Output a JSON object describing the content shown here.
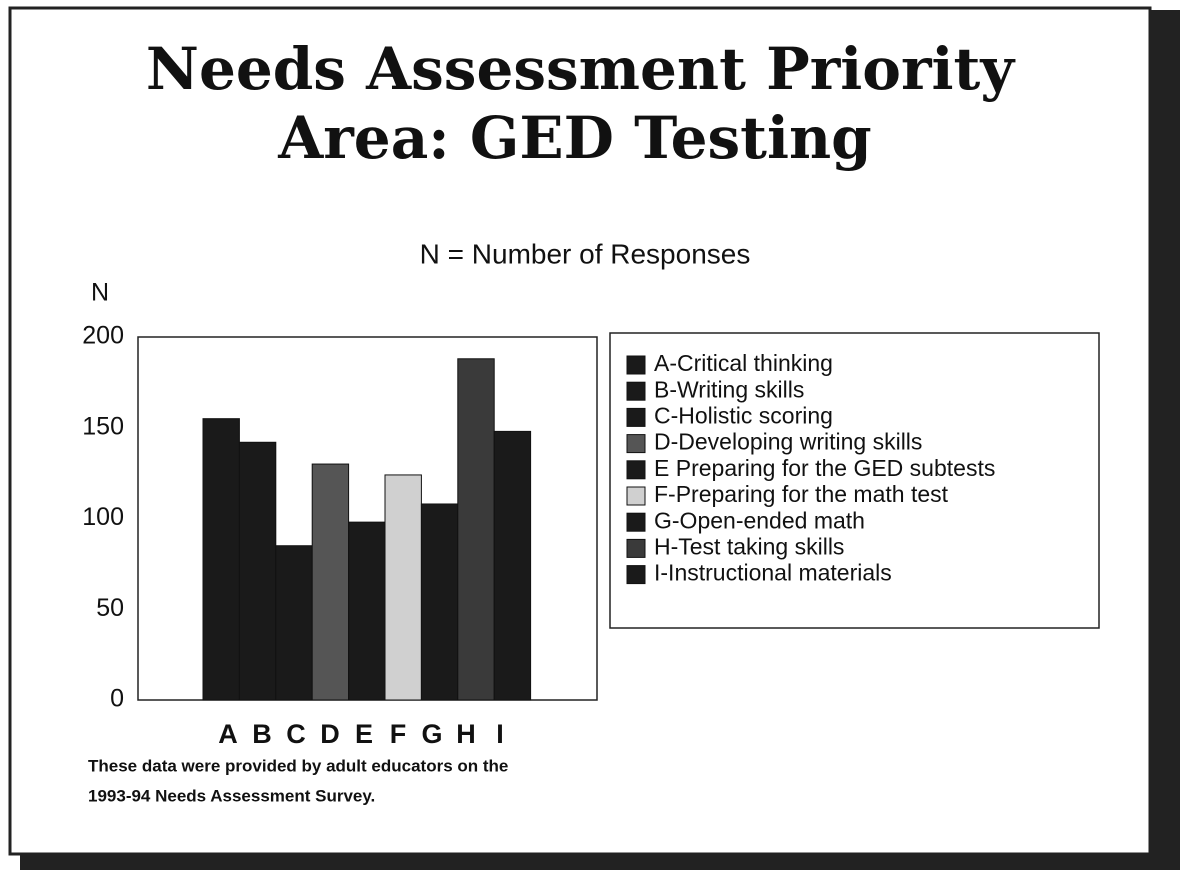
{
  "chart_data": {
    "type": "bar",
    "title": [
      "Needs Assessment Priority",
      "Area:  GED Testing"
    ],
    "subtitle": "N = Number of Responses",
    "y_label": "N",
    "categories": [
      "A",
      "B",
      "C",
      "D",
      "E",
      "F",
      "G",
      "H",
      "I"
    ],
    "values": [
      155,
      142,
      85,
      130,
      98,
      124,
      108,
      188,
      148
    ],
    "colors": [
      "#1a1a1a",
      "#1a1a1a",
      "#1a1a1a",
      "#555555",
      "#1a1a1a",
      "#d0d0d0",
      "#1a1a1a",
      "#3a3a3a",
      "#1a1a1a"
    ],
    "legend": [
      "A-Critical thinking",
      "B-Writing skills",
      "C-Holistic scoring",
      "D-Developing writing skills",
      "E Preparing for the GED subtests",
      "F-Preparing for the math test",
      "G-Open-ended math",
      "H-Test taking skills",
      "I-Instructional materials"
    ],
    "ylim": [
      0,
      200
    ],
    "yticks": [
      0,
      50,
      100,
      150,
      200
    ],
    "grid": false,
    "footnote": [
      "These data were provided by adult educators on the",
      "1993-94 Needs Assessment Survey."
    ]
  }
}
